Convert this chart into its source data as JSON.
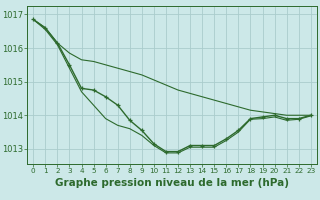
{
  "x": [
    0,
    1,
    2,
    3,
    4,
    5,
    6,
    7,
    8,
    9,
    10,
    11,
    12,
    13,
    14,
    15,
    16,
    17,
    18,
    19,
    20,
    21,
    22,
    23
  ],
  "line_main": [
    1016.85,
    1016.6,
    1016.15,
    1015.5,
    1014.8,
    1014.75,
    1014.55,
    1014.3,
    1013.85,
    1013.55,
    1013.15,
    1012.92,
    1012.92,
    1013.1,
    1013.1,
    1013.1,
    1013.3,
    1013.55,
    1013.9,
    1013.95,
    1014.0,
    1013.9,
    1013.9,
    1014.0
  ],
  "line_upper": [
    1016.85,
    1016.6,
    1016.15,
    1015.85,
    1015.65,
    1015.6,
    1015.5,
    1015.4,
    1015.3,
    1015.2,
    1015.05,
    1014.9,
    1014.75,
    1014.65,
    1014.55,
    1014.45,
    1014.35,
    1014.25,
    1014.15,
    1014.1,
    1014.05,
    1014.0,
    1014.0,
    1014.0
  ],
  "line_lower": [
    1016.85,
    1016.55,
    1016.1,
    1015.4,
    1014.7,
    1014.3,
    1013.9,
    1013.7,
    1013.6,
    1013.4,
    1013.1,
    1012.88,
    1012.88,
    1013.05,
    1013.05,
    1013.05,
    1013.25,
    1013.5,
    1013.88,
    1013.9,
    1013.95,
    1013.85,
    1013.88,
    1013.98
  ],
  "line_color": "#2d6a2d",
  "bg_color": "#cce8e8",
  "grid_color": "#aacccc",
  "title": "Graphe pression niveau de la mer (hPa)",
  "ylim_min": 1012.55,
  "ylim_max": 1017.25,
  "yticks": [
    1013,
    1014,
    1015,
    1016,
    1017
  ],
  "ytick_top": 1017,
  "marker_size": 3.5,
  "lw_main": 1.0,
  "lw_side": 0.8
}
